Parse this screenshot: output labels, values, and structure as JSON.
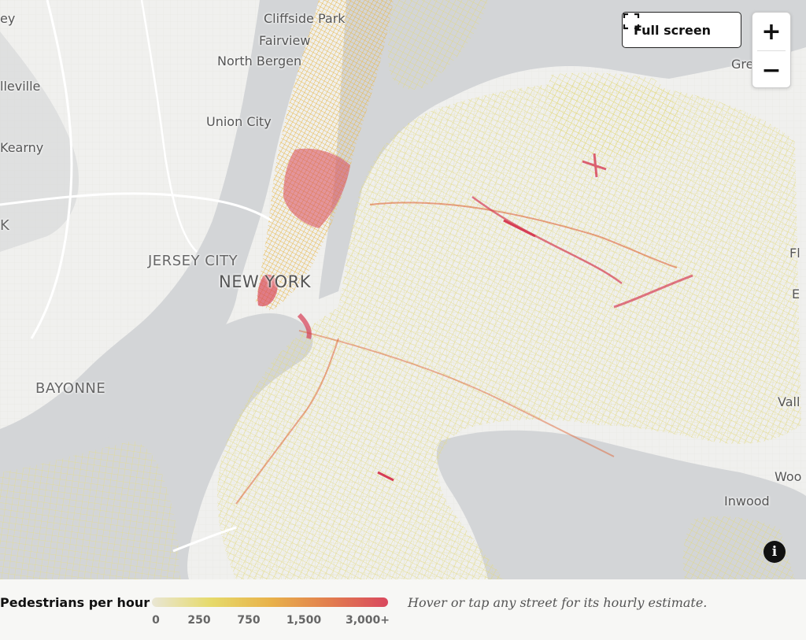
{
  "map": {
    "places": [
      {
        "name": "Cliffside Park",
        "style": "normal"
      },
      {
        "name": "Fairview",
        "style": "normal"
      },
      {
        "name": "North Bergen",
        "style": "normal"
      },
      {
        "name": "Union City",
        "style": "normal"
      },
      {
        "name": "lleville",
        "style": "normal"
      },
      {
        "name": "Kearny",
        "style": "normal"
      },
      {
        "name": "JERSEY CITY",
        "style": "caps"
      },
      {
        "name": "NEW YORK",
        "style": "big"
      },
      {
        "name": "BAYONNE",
        "style": "caps"
      },
      {
        "name": "Inwood",
        "style": "normal"
      },
      {
        "name": "ey",
        "style": "normal"
      },
      {
        "name": "K",
        "style": "normal"
      },
      {
        "name": "Gre",
        "style": "normal"
      },
      {
        "name": "Fl",
        "style": "normal"
      },
      {
        "name": "E",
        "style": "normal"
      },
      {
        "name": "Vall",
        "style": "normal"
      },
      {
        "name": "Woo",
        "style": "normal"
      }
    ],
    "colors": {
      "water": "#d3d5d7",
      "land": "#f0f0ee",
      "street_low": "#e7e2a8",
      "street_mid": "#e8c84a",
      "street_high": "#e0683a",
      "street_peak": "#d63d55"
    }
  },
  "controls": {
    "fullscreen_label": "Full screen",
    "zoom_in_label": "+",
    "zoom_out_label": "−",
    "info_label": "i"
  },
  "legend": {
    "title": "Pedestrians per hour",
    "ticks": [
      "0",
      "250",
      "750",
      "1,500",
      "3,000+"
    ],
    "gradient": [
      "#e9e6d4",
      "#e6da6a",
      "#e8b24a",
      "#e27e4e",
      "#d9485e"
    ],
    "hint": "Hover or tap any street for its hourly estimate."
  }
}
